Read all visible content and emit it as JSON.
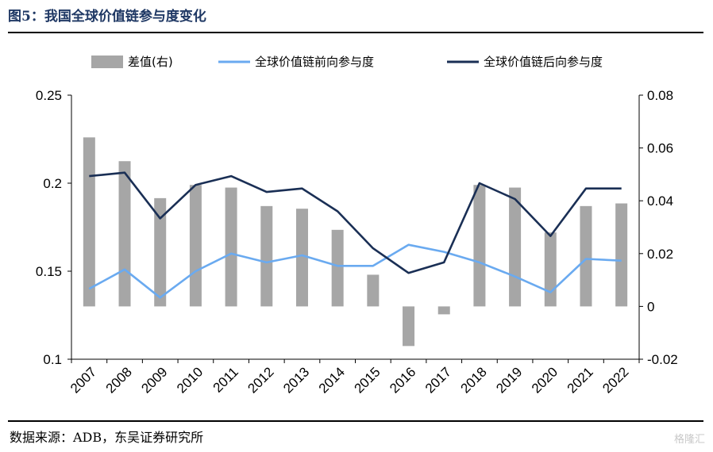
{
  "title": "图5：我国全球价值链参与度变化",
  "source": "数据来源：ADB，东吴证券研究所",
  "watermark": "格隆汇",
  "chart_data": {
    "type": "bar+line",
    "categories": [
      "2007",
      "2008",
      "2009",
      "2010",
      "2011",
      "2012",
      "2013",
      "2014",
      "2015",
      "2016",
      "2017",
      "2018",
      "2019",
      "2020",
      "2021",
      "2022"
    ],
    "series": [
      {
        "name": "差值(右)",
        "type": "bar",
        "axis": "right",
        "color": "#a6a6a6",
        "values": [
          0.064,
          0.055,
          0.041,
          0.046,
          0.045,
          0.038,
          0.037,
          0.029,
          0.012,
          -0.015,
          -0.003,
          0.046,
          0.045,
          0.028,
          0.038,
          0.039
        ]
      },
      {
        "name": "全球价值链前向参与度",
        "type": "line",
        "axis": "left",
        "color": "#6aaaf0",
        "values": [
          0.14,
          0.151,
          0.135,
          0.15,
          0.16,
          0.155,
          0.159,
          0.153,
          0.153,
          0.165,
          0.161,
          0.155,
          0.147,
          0.138,
          0.157,
          0.156
        ]
      },
      {
        "name": "全球价值链后向参与度",
        "type": "line",
        "axis": "left",
        "color": "#1a2f55",
        "values": [
          0.204,
          0.206,
          0.18,
          0.199,
          0.204,
          0.195,
          0.197,
          0.184,
          0.163,
          0.149,
          0.155,
          0.2,
          0.191,
          0.17,
          0.197,
          0.197
        ]
      }
    ],
    "y_left": {
      "range": [
        0.1,
        0.25
      ],
      "ticks": [
        "0.25",
        "0.2",
        "0.15",
        "0.1"
      ],
      "tick_values": [
        0.25,
        0.2,
        0.15,
        0.1
      ]
    },
    "y_right": {
      "range": [
        -0.02,
        0.08
      ],
      "ticks": [
        "0.08",
        "0.06",
        "0.04",
        "0.02",
        "0",
        "-0.02"
      ],
      "tick_values": [
        0.08,
        0.06,
        0.04,
        0.02,
        0,
        -0.02
      ]
    },
    "grid": false,
    "legend_position": "top"
  }
}
